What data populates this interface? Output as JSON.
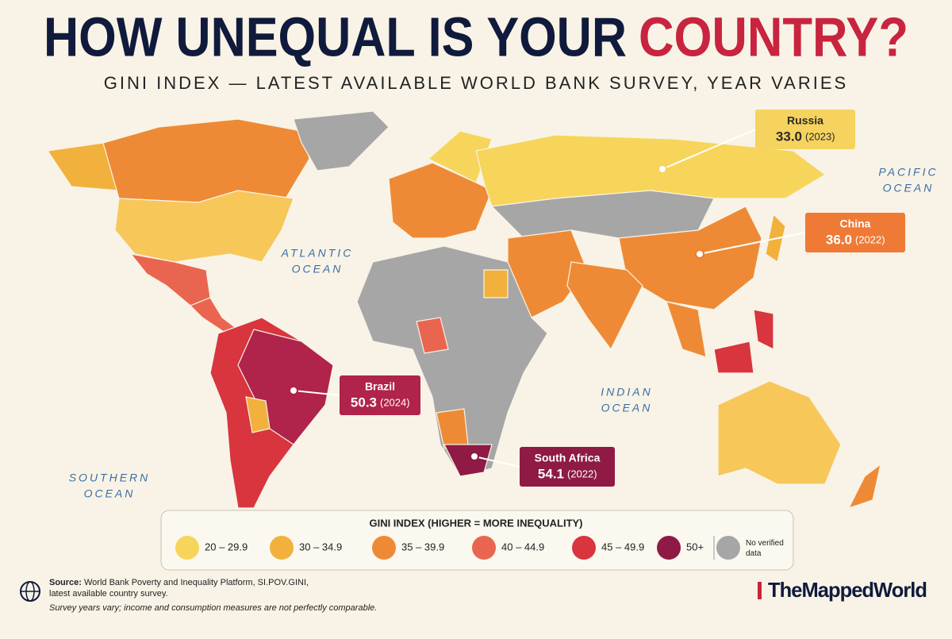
{
  "header": {
    "title": "HOW UNEQUAL IS YOUR",
    "title_highlight": "COUNTRY?",
    "subtitle": "GINI INDEX — LATEST AVAILABLE WORLD BANK SURVEY, YEAR VARIES"
  },
  "callouts": [
    {
      "country": "Russia",
      "value": "33.0",
      "year": "(2023)",
      "color": "#f5d35e",
      "text_color": "#2a2a2a"
    },
    {
      "country": "China",
      "value": "36.0",
      "year": "(2022)",
      "color": "#ee7a35",
      "text_color": "#ffffff"
    },
    {
      "country": "Brazil",
      "value": "50.3",
      "year": "(2024)",
      "color": "#b0234a",
      "text_color": "#ffffff"
    },
    {
      "country": "South Africa",
      "value": "54.1",
      "year": "(2022)",
      "color": "#8e1a45",
      "text_color": "#ffffff"
    }
  ],
  "oceans": [
    {
      "lines": [
        "ATLANTIC",
        "OCEAN"
      ]
    },
    {
      "lines": [
        "PACIFIC",
        "OCEAN"
      ]
    },
    {
      "lines": [
        "INDIAN",
        "OCEAN"
      ]
    },
    {
      "lines": [
        "SOUTHERN",
        "OCEAN"
      ]
    }
  ],
  "legend": {
    "title": "GINI INDEX (HIGHER = MORE INEQUALITY)",
    "items": [
      {
        "label": "20 – 29.9",
        "color": "#f7d55a"
      },
      {
        "label": "30 – 34.9",
        "color": "#f2b13c"
      },
      {
        "label": "35 – 39.9",
        "color": "#ee8a35"
      },
      {
        "label": "40 – 44.9",
        "color": "#ea6550"
      },
      {
        "label": "45 – 49.9",
        "color": "#d8353f"
      },
      {
        "label": "50+",
        "color": "#8e1a45"
      },
      {
        "label": "No verified data",
        "color": "#a6a6a6"
      }
    ]
  },
  "footer": {
    "source_label": "Source:",
    "source_text": "World Bank Poverty and Inequality Platform, SI.POV.GINI,",
    "source_text_2": "latest available country survey.",
    "note": "Survey years vary; income and consumption measures are not perfectly comparable.",
    "brand": "TheMappedWorld"
  }
}
